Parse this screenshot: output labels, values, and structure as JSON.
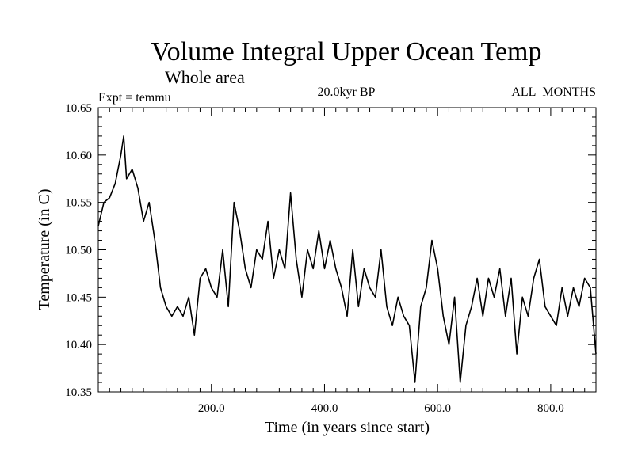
{
  "chart_data": {
    "type": "line",
    "title": "Volume Integral Upper Ocean Temp",
    "subtitle": "Whole area",
    "experiment": "Expt = temmu",
    "period": "20.0kyr BP",
    "months": "ALL_MONTHS",
    "xlabel": "Time (in years since start)",
    "ylabel": "Temperature (in C)",
    "xlim": [
      0,
      880
    ],
    "ylim": [
      10.35,
      10.65
    ],
    "x_ticks": [
      200,
      400,
      600,
      800
    ],
    "x_tick_labels": [
      "200.0",
      "400.0",
      "600.0",
      "800.0"
    ],
    "y_ticks": [
      10.35,
      10.4,
      10.45,
      10.5,
      10.55,
      10.6,
      10.65
    ],
    "y_tick_labels": [
      "10.35",
      "10.40",
      "10.45",
      "10.50",
      "10.55",
      "10.60",
      "10.65"
    ],
    "grid": false,
    "series": [
      {
        "name": "Volume Integral Upper Ocean Temp",
        "color": "#000000",
        "x": [
          0,
          10,
          20,
          30,
          40,
          45,
          50,
          60,
          70,
          80,
          90,
          100,
          110,
          120,
          130,
          140,
          150,
          160,
          170,
          180,
          190,
          200,
          210,
          220,
          230,
          240,
          250,
          260,
          270,
          280,
          290,
          300,
          310,
          320,
          330,
          340,
          350,
          360,
          370,
          380,
          390,
          400,
          410,
          420,
          430,
          440,
          450,
          460,
          470,
          480,
          490,
          500,
          510,
          520,
          530,
          540,
          550,
          560,
          570,
          580,
          590,
          600,
          610,
          620,
          630,
          640,
          650,
          660,
          670,
          680,
          690,
          700,
          710,
          720,
          730,
          740,
          750,
          760,
          770,
          780,
          790,
          800,
          810,
          820,
          830,
          840,
          850,
          860,
          870,
          880
        ],
        "values": [
          10.525,
          10.55,
          10.555,
          10.57,
          10.6,
          10.62,
          10.575,
          10.585,
          10.565,
          10.53,
          10.55,
          10.51,
          10.46,
          10.44,
          10.43,
          10.44,
          10.43,
          10.45,
          10.41,
          10.47,
          10.48,
          10.46,
          10.45,
          10.5,
          10.44,
          10.55,
          10.52,
          10.48,
          10.46,
          10.5,
          10.49,
          10.53,
          10.47,
          10.5,
          10.48,
          10.56,
          10.49,
          10.45,
          10.5,
          10.48,
          10.52,
          10.48,
          10.51,
          10.48,
          10.46,
          10.43,
          10.5,
          10.44,
          10.48,
          10.46,
          10.45,
          10.5,
          10.44,
          10.42,
          10.45,
          10.43,
          10.42,
          10.36,
          10.44,
          10.46,
          10.51,
          10.48,
          10.43,
          10.4,
          10.45,
          10.36,
          10.42,
          10.44,
          10.47,
          10.43,
          10.47,
          10.45,
          10.48,
          10.43,
          10.47,
          10.39,
          10.45,
          10.43,
          10.47,
          10.49,
          10.44,
          10.43,
          10.42,
          10.46,
          10.43,
          10.46,
          10.44,
          10.47,
          10.46,
          10.39
        ]
      }
    ]
  }
}
